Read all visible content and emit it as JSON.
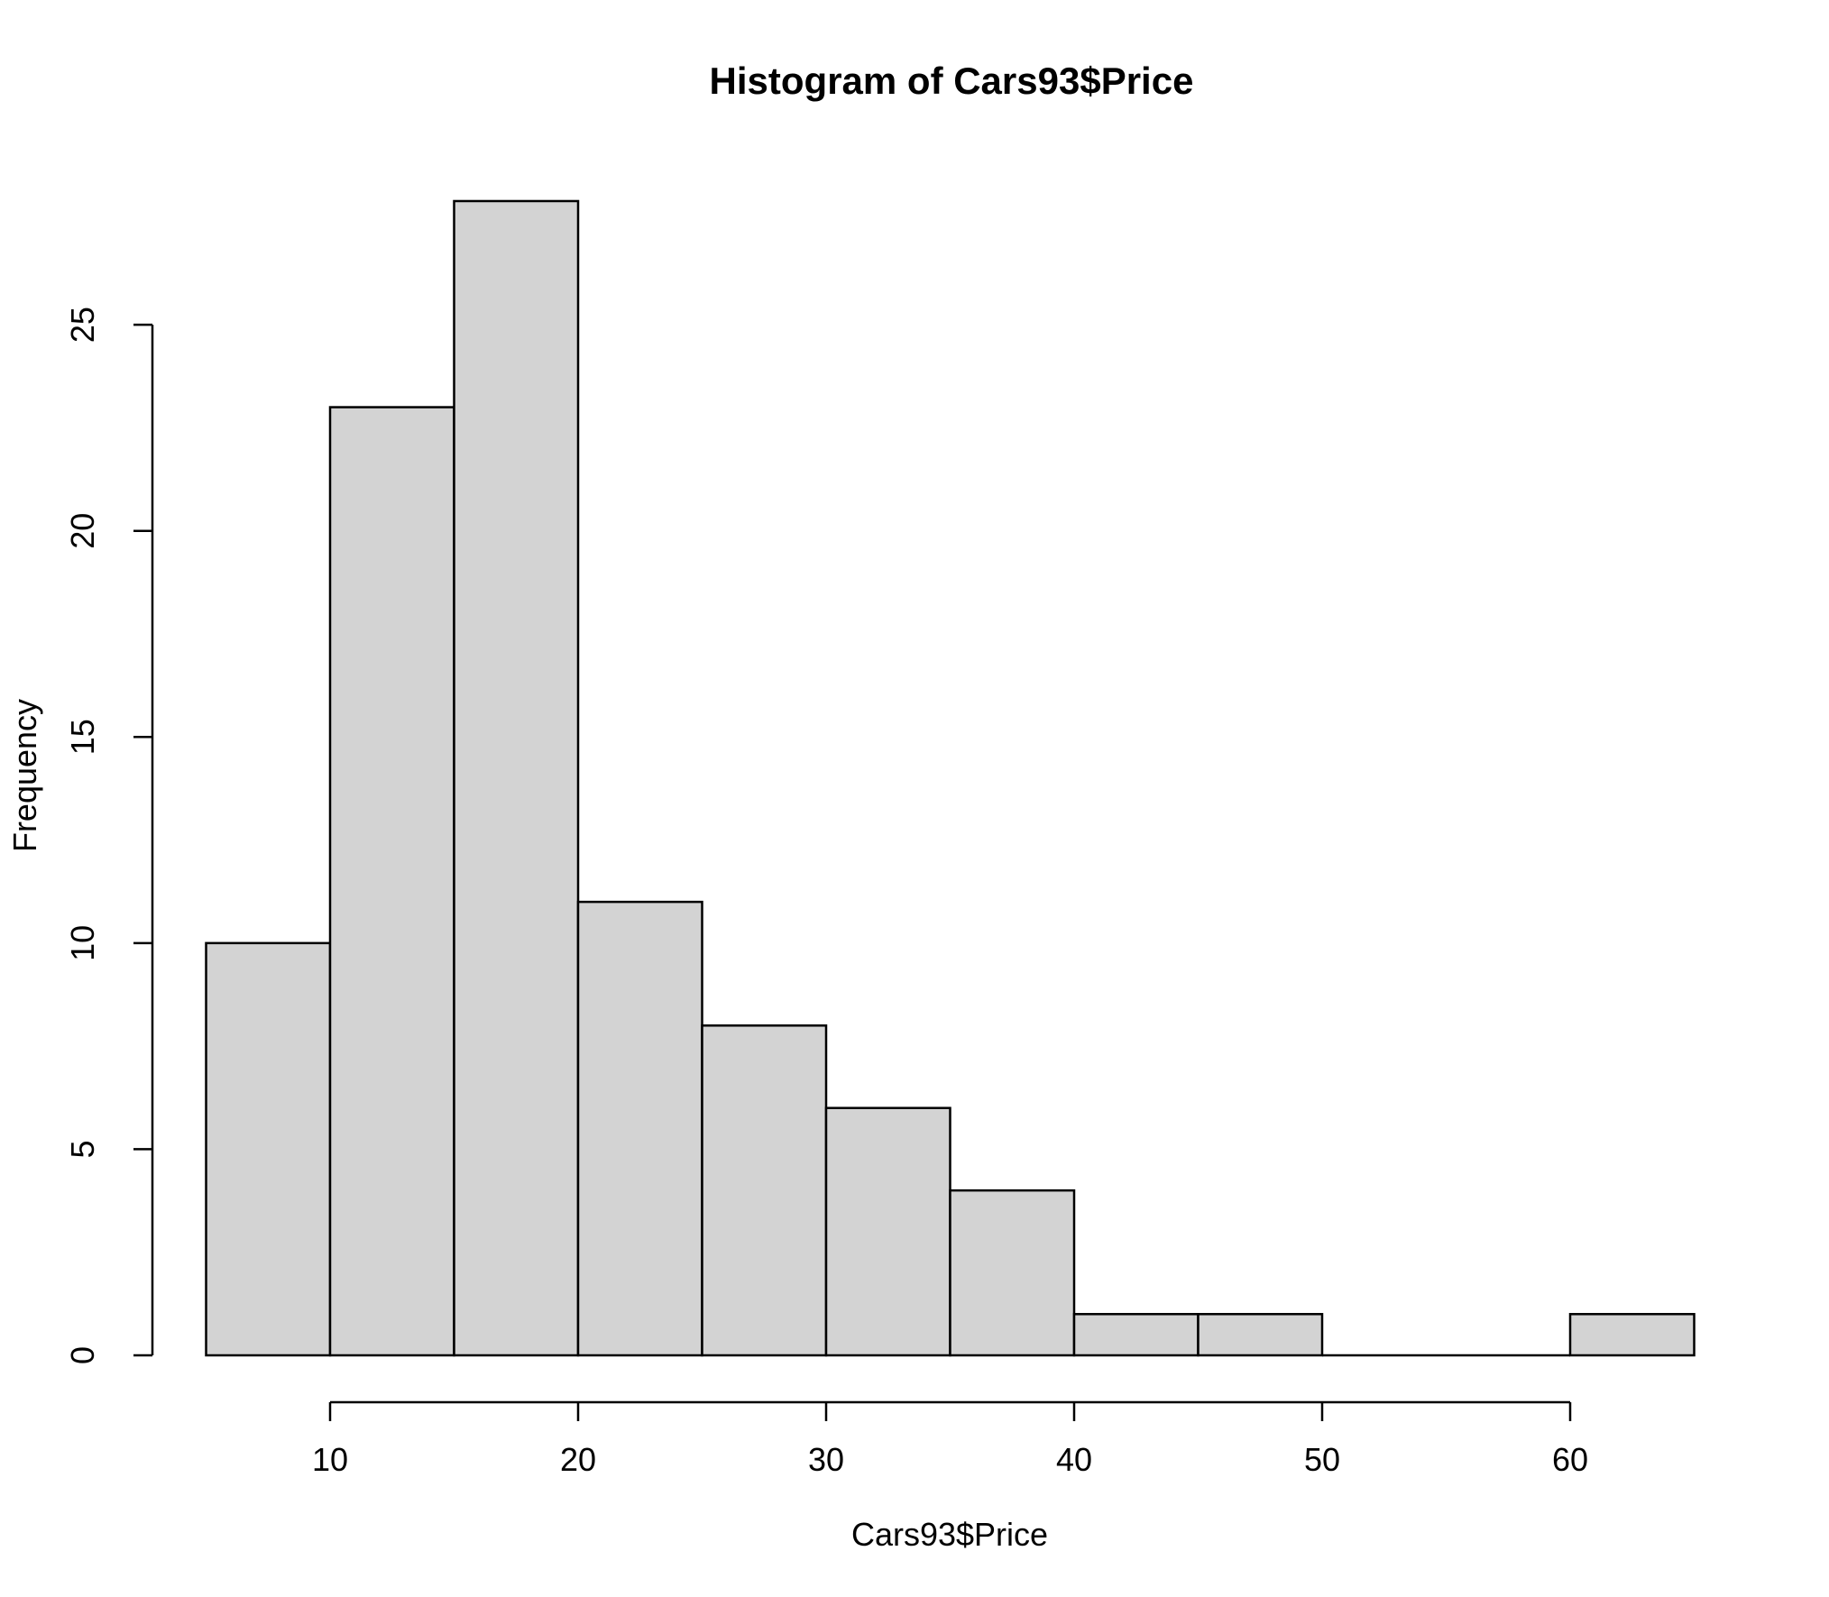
{
  "chart_data": {
    "type": "bar",
    "subtype": "histogram",
    "title": "Histogram of Cars93$Price",
    "xlabel": "Cars93$Price",
    "ylabel": "Frequency",
    "bin_edges": [
      5,
      10,
      15,
      20,
      25,
      30,
      35,
      40,
      45,
      50,
      55,
      60,
      65
    ],
    "counts": [
      10,
      23,
      28,
      11,
      8,
      6,
      4,
      1,
      1,
      0,
      0,
      1
    ],
    "x_ticks": [
      10,
      20,
      30,
      40,
      50,
      60
    ],
    "y_ticks": [
      0,
      5,
      10,
      15,
      20,
      25
    ],
    "xlim": [
      5,
      65
    ],
    "ylim": [
      0,
      28
    ],
    "grid": "off",
    "legend": "none",
    "colors": {
      "bar_fill": "#d3d3d3",
      "bar_stroke": "#000000",
      "axis": "#000000",
      "text": "#000000",
      "background": "#ffffff"
    }
  }
}
